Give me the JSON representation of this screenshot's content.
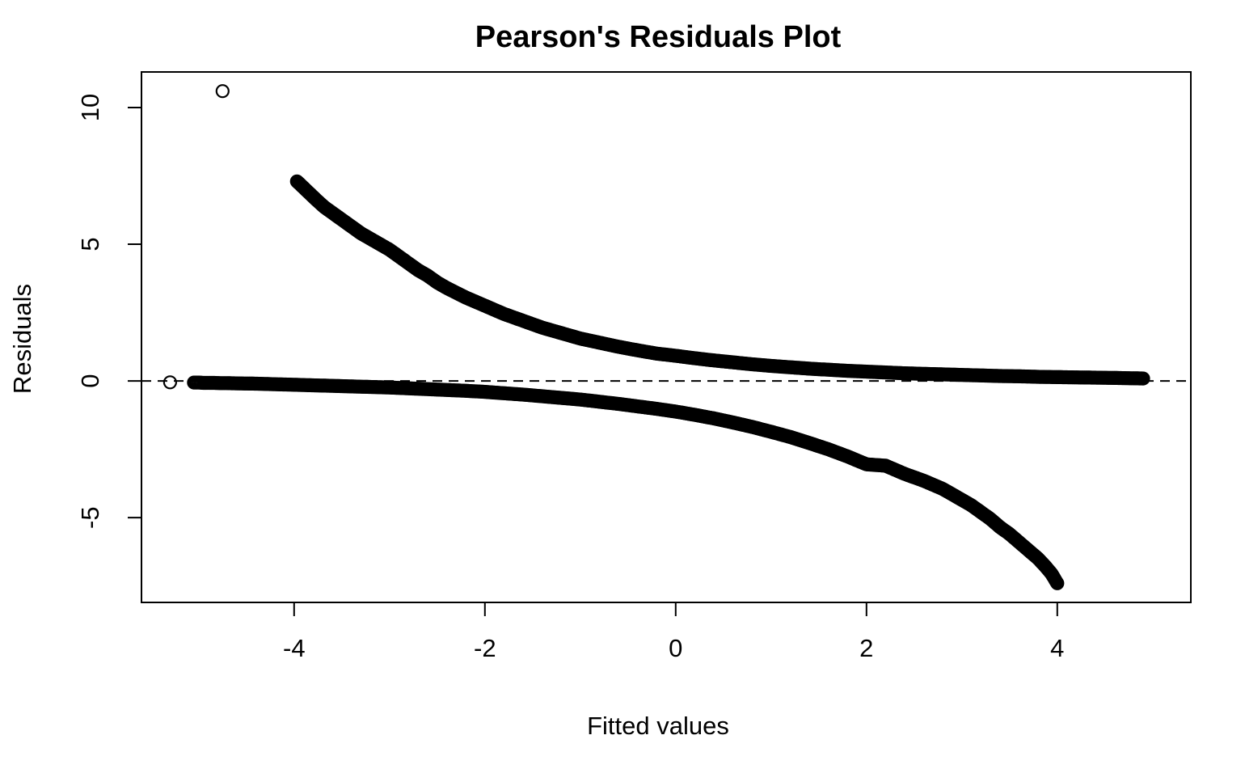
{
  "chart_data": {
    "type": "scatter",
    "title": "Pearson's Residuals Plot",
    "xlabel": "Fitted values",
    "ylabel": "Residuals",
    "xlim": [
      -5.6,
      5.4
    ],
    "ylim": [
      -8.1,
      11.3
    ],
    "x_ticks": [
      -4,
      -2,
      0,
      2,
      4
    ],
    "x_tick_labels": [
      "-4",
      "-2",
      "0",
      "2",
      "4"
    ],
    "y_ticks": [
      -5,
      0,
      5,
      10
    ],
    "y_tick_labels": [
      "-5",
      "0",
      "5",
      "10"
    ],
    "reference_line": {
      "y": 0,
      "style": "dashed"
    },
    "grid": false,
    "legend": "none",
    "marker": "open-circle",
    "series": [
      {
        "points": [
          [
            -5.3,
            -0.05
          ],
          [
            -4.75,
            10.6
          ],
          [
            -3.97,
            7.3
          ],
          [
            -3.76,
            6.6
          ],
          [
            -3.68,
            6.35
          ],
          [
            -3.6,
            6.15
          ],
          [
            -3.52,
            5.95
          ],
          [
            -3.42,
            5.7
          ],
          [
            -3.3,
            5.4
          ],
          [
            -3.2,
            5.2
          ],
          [
            -3.1,
            5.0
          ],
          [
            -3.0,
            4.8
          ],
          [
            -2.9,
            4.55
          ],
          [
            -2.8,
            4.3
          ],
          [
            -2.7,
            4.05
          ],
          [
            -2.6,
            3.85
          ],
          [
            -2.5,
            3.6
          ],
          [
            -2.4,
            3.4
          ],
          [
            -2.2,
            3.05
          ],
          [
            -2.0,
            2.75
          ],
          [
            -1.8,
            2.45
          ],
          [
            -1.6,
            2.2
          ],
          [
            -1.4,
            1.95
          ],
          [
            -1.2,
            1.75
          ],
          [
            -1.0,
            1.55
          ],
          [
            -0.8,
            1.4
          ],
          [
            -0.6,
            1.25
          ],
          [
            -0.4,
            1.12
          ],
          [
            -0.2,
            1.0
          ],
          [
            0.0,
            0.92
          ],
          [
            0.2,
            0.83
          ],
          [
            0.4,
            0.75
          ],
          [
            0.6,
            0.68
          ],
          [
            0.8,
            0.61
          ],
          [
            1.0,
            0.55
          ],
          [
            1.2,
            0.5
          ],
          [
            1.4,
            0.45
          ],
          [
            1.6,
            0.41
          ],
          [
            1.8,
            0.37
          ],
          [
            2.0,
            0.34
          ],
          [
            2.2,
            0.31
          ],
          [
            2.4,
            0.28
          ],
          [
            2.6,
            0.26
          ],
          [
            2.8,
            0.24
          ],
          [
            3.0,
            0.22
          ],
          [
            3.2,
            0.2
          ],
          [
            3.4,
            0.18
          ],
          [
            3.6,
            0.17
          ],
          [
            3.8,
            0.15
          ],
          [
            4.0,
            0.14
          ],
          [
            4.2,
            0.13
          ],
          [
            4.4,
            0.12
          ],
          [
            4.6,
            0.11
          ],
          [
            4.75,
            0.1
          ],
          [
            4.9,
            0.09
          ],
          [
            -5.05,
            -0.06
          ],
          [
            -5.0,
            -0.06
          ],
          [
            -4.95,
            -0.07
          ],
          [
            -4.85,
            -0.07
          ],
          [
            -4.78,
            -0.08
          ],
          [
            -4.7,
            -0.08
          ],
          [
            -4.6,
            -0.09
          ],
          [
            -4.4,
            -0.1
          ],
          [
            -4.2,
            -0.12
          ],
          [
            -4.0,
            -0.14
          ],
          [
            -3.8,
            -0.16
          ],
          [
            -3.6,
            -0.18
          ],
          [
            -3.4,
            -0.2
          ],
          [
            -3.2,
            -0.22
          ],
          [
            -3.0,
            -0.24
          ],
          [
            -2.8,
            -0.27
          ],
          [
            -2.6,
            -0.3
          ],
          [
            -2.4,
            -0.33
          ],
          [
            -2.2,
            -0.36
          ],
          [
            -2.0,
            -0.4
          ],
          [
            -1.8,
            -0.45
          ],
          [
            -1.6,
            -0.5
          ],
          [
            -1.4,
            -0.56
          ],
          [
            -1.2,
            -0.62
          ],
          [
            -1.0,
            -0.68
          ],
          [
            -0.8,
            -0.76
          ],
          [
            -0.6,
            -0.84
          ],
          [
            -0.4,
            -0.93
          ],
          [
            -0.2,
            -1.02
          ],
          [
            0.0,
            -1.12
          ],
          [
            0.2,
            -1.24
          ],
          [
            0.4,
            -1.37
          ],
          [
            0.6,
            -1.52
          ],
          [
            0.8,
            -1.68
          ],
          [
            1.0,
            -1.86
          ],
          [
            1.2,
            -2.05
          ],
          [
            1.4,
            -2.27
          ],
          [
            1.6,
            -2.5
          ],
          [
            1.8,
            -2.76
          ],
          [
            2.0,
            -3.05
          ],
          [
            2.2,
            -3.1
          ],
          [
            2.4,
            -3.4
          ],
          [
            2.6,
            -3.65
          ],
          [
            2.8,
            -3.95
          ],
          [
            3.0,
            -4.35
          ],
          [
            3.1,
            -4.55
          ],
          [
            3.2,
            -4.8
          ],
          [
            3.3,
            -5.05
          ],
          [
            3.4,
            -5.35
          ],
          [
            3.5,
            -5.6
          ],
          [
            3.6,
            -5.9
          ],
          [
            3.7,
            -6.2
          ],
          [
            3.8,
            -6.5
          ],
          [
            3.88,
            -6.8
          ],
          [
            3.94,
            -7.05
          ],
          [
            4.0,
            -7.4
          ]
        ]
      }
    ]
  }
}
